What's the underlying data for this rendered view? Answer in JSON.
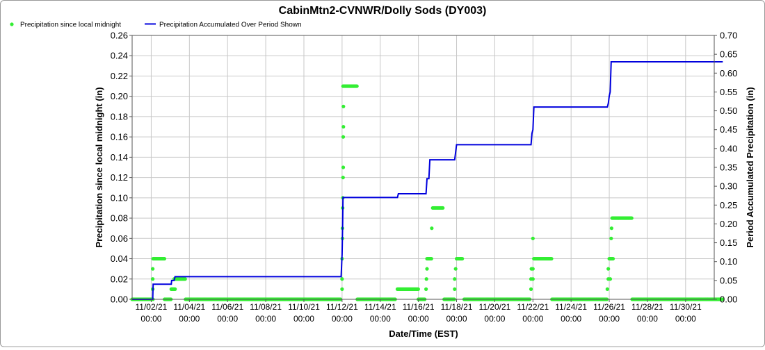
{
  "chart_data": {
    "type": "line",
    "title": "CabinMtn2-CVNWR/Dolly Sods (DY003)",
    "xlabel": "Date/Time (EST)",
    "ylabel_left": "Precipitation since local midnight (in)",
    "ylabel_right": "Period Accumulated Precipitation (in)",
    "ylim_left": [
      0,
      0.26
    ],
    "ylim_right": [
      0,
      0.7
    ],
    "xlim": [
      "11/01/21 00:00",
      "12/01/21 12:00"
    ],
    "y_ticks_left": [
      "0.00",
      "0.02",
      "0.04",
      "0.06",
      "0.08",
      "0.10",
      "0.12",
      "0.14",
      "0.16",
      "0.18",
      "0.20",
      "0.22",
      "0.24",
      "0.26"
    ],
    "y_ticks_right": [
      "0.00",
      "0.05",
      "0.10",
      "0.15",
      "0.20",
      "0.25",
      "0.30",
      "0.35",
      "0.40",
      "0.45",
      "0.50",
      "0.55",
      "0.60",
      "0.65",
      "0.70"
    ],
    "x_ticks": [
      {
        "day": 1,
        "date": "11/02/21",
        "time": "00:00"
      },
      {
        "day": 3,
        "date": "11/04/21",
        "time": "00:00"
      },
      {
        "day": 5,
        "date": "11/06/21",
        "time": "00:00"
      },
      {
        "day": 7,
        "date": "11/08/21",
        "time": "00:00"
      },
      {
        "day": 9,
        "date": "11/10/21",
        "time": "00:00"
      },
      {
        "day": 11,
        "date": "11/12/21",
        "time": "00:00"
      },
      {
        "day": 13,
        "date": "11/14/21",
        "time": "00:00"
      },
      {
        "day": 15,
        "date": "11/16/21",
        "time": "00:00"
      },
      {
        "day": 17,
        "date": "11/18/21",
        "time": "00:00"
      },
      {
        "day": 19,
        "date": "11/20/21",
        "time": "00:00"
      },
      {
        "day": 21,
        "date": "11/22/21",
        "time": "00:00"
      },
      {
        "day": 23,
        "date": "11/24/21",
        "time": "00:00"
      },
      {
        "day": 25,
        "date": "11/26/21",
        "time": "00:00"
      },
      {
        "day": 27,
        "date": "11/28/21",
        "time": "00:00"
      },
      {
        "day": 29,
        "date": "11/30/21",
        "time": "00:00"
      }
    ],
    "legend": {
      "placement": "top-left"
    },
    "colors": {
      "daily": "#33ee33",
      "accum": "#0000dd",
      "grid": "#c8c8c8"
    },
    "series": [
      {
        "name": "Precipitation since local midnight",
        "kind": "scatter",
        "axis": "left",
        "segments": [
          {
            "from": 0.0,
            "to": 1.1,
            "value": 0.0
          },
          {
            "from": 1.1,
            "to": 1.7,
            "value": 0.04
          },
          {
            "from": 1.7,
            "to": 2.05,
            "value": 0.0
          },
          {
            "from": 2.05,
            "to": 2.25,
            "value": 0.01
          },
          {
            "from": 2.25,
            "to": 2.8,
            "value": 0.02
          },
          {
            "from": 2.8,
            "to": 10.95,
            "value": 0.0
          },
          {
            "from": 11.05,
            "to": 11.8,
            "value": 0.21
          },
          {
            "from": 11.8,
            "to": 13.8,
            "value": 0.0
          },
          {
            "from": 13.9,
            "to": 15.0,
            "value": 0.01
          },
          {
            "from": 15.0,
            "to": 15.35,
            "value": 0.0
          },
          {
            "from": 15.45,
            "to": 15.7,
            "value": 0.04
          },
          {
            "from": 15.75,
            "to": 16.3,
            "value": 0.09
          },
          {
            "from": 16.35,
            "to": 16.9,
            "value": 0.0
          },
          {
            "from": 17.0,
            "to": 17.3,
            "value": 0.04
          },
          {
            "from": 17.4,
            "to": 20.85,
            "value": 0.0
          },
          {
            "from": 21.05,
            "to": 22.0,
            "value": 0.04
          },
          {
            "from": 22.0,
            "to": 24.9,
            "value": 0.0
          },
          {
            "from": 25.0,
            "to": 25.2,
            "value": 0.04
          },
          {
            "from": 25.15,
            "to": 26.2,
            "value": 0.08
          },
          {
            "from": 26.2,
            "to": 30.95,
            "value": 0.0
          }
        ],
        "points": [
          {
            "x": 1.08,
            "y": 0.03
          },
          {
            "x": 1.08,
            "y": 0.02
          },
          {
            "x": 1.08,
            "y": 0.01
          },
          {
            "x": 2.12,
            "y": 0.01
          },
          {
            "x": 2.2,
            "y": 0.02
          },
          {
            "x": 11.0,
            "y": 0.01
          },
          {
            "x": 11.0,
            "y": 0.02
          },
          {
            "x": 11.0,
            "y": 0.04
          },
          {
            "x": 11.02,
            "y": 0.06
          },
          {
            "x": 11.02,
            "y": 0.07
          },
          {
            "x": 11.03,
            "y": 0.09
          },
          {
            "x": 11.04,
            "y": 0.1
          },
          {
            "x": 11.05,
            "y": 0.12
          },
          {
            "x": 11.06,
            "y": 0.13
          },
          {
            "x": 11.06,
            "y": 0.16
          },
          {
            "x": 11.07,
            "y": 0.17
          },
          {
            "x": 11.07,
            "y": 0.19
          },
          {
            "x": 15.4,
            "y": 0.01
          },
          {
            "x": 15.42,
            "y": 0.02
          },
          {
            "x": 15.45,
            "y": 0.03
          },
          {
            "x": 15.7,
            "y": 0.07
          },
          {
            "x": 16.9,
            "y": 0.01
          },
          {
            "x": 16.9,
            "y": 0.02
          },
          {
            "x": 16.95,
            "y": 0.03
          },
          {
            "x": 20.9,
            "y": 0.01
          },
          {
            "x": 20.9,
            "y": 0.02
          },
          {
            "x": 20.92,
            "y": 0.03
          },
          {
            "x": 21.0,
            "y": 0.02
          },
          {
            "x": 21.0,
            "y": 0.03
          },
          {
            "x": 21.0,
            "y": 0.06
          },
          {
            "x": 24.9,
            "y": 0.01
          },
          {
            "x": 24.95,
            "y": 0.02
          },
          {
            "x": 24.95,
            "y": 0.03
          },
          {
            "x": 25.05,
            "y": 0.02
          },
          {
            "x": 25.07,
            "y": 0.04
          },
          {
            "x": 25.1,
            "y": 0.06
          },
          {
            "x": 25.12,
            "y": 0.07
          }
        ]
      },
      {
        "name": "Precipitation Accumulated Over Period Shown",
        "kind": "line",
        "axis": "right",
        "points": [
          {
            "x": 0.0,
            "y": 0.0
          },
          {
            "x": 1.08,
            "y": 0.0
          },
          {
            "x": 1.1,
            "y": 0.04
          },
          {
            "x": 2.05,
            "y": 0.04
          },
          {
            "x": 2.07,
            "y": 0.05
          },
          {
            "x": 2.2,
            "y": 0.05
          },
          {
            "x": 2.25,
            "y": 0.06
          },
          {
            "x": 10.95,
            "y": 0.06
          },
          {
            "x": 11.0,
            "y": 0.12
          },
          {
            "x": 11.03,
            "y": 0.2
          },
          {
            "x": 11.05,
            "y": 0.27
          },
          {
            "x": 13.9,
            "y": 0.27
          },
          {
            "x": 13.95,
            "y": 0.28
          },
          {
            "x": 15.4,
            "y": 0.28
          },
          {
            "x": 15.45,
            "y": 0.32
          },
          {
            "x": 15.55,
            "y": 0.32
          },
          {
            "x": 15.6,
            "y": 0.37
          },
          {
            "x": 16.9,
            "y": 0.37
          },
          {
            "x": 17.0,
            "y": 0.41
          },
          {
            "x": 20.9,
            "y": 0.41
          },
          {
            "x": 20.95,
            "y": 0.44
          },
          {
            "x": 21.0,
            "y": 0.45
          },
          {
            "x": 21.05,
            "y": 0.51
          },
          {
            "x": 24.9,
            "y": 0.51
          },
          {
            "x": 24.95,
            "y": 0.52
          },
          {
            "x": 25.0,
            "y": 0.54
          },
          {
            "x": 25.05,
            "y": 0.55
          },
          {
            "x": 25.1,
            "y": 0.63
          },
          {
            "x": 30.95,
            "y": 0.63
          }
        ]
      }
    ]
  }
}
